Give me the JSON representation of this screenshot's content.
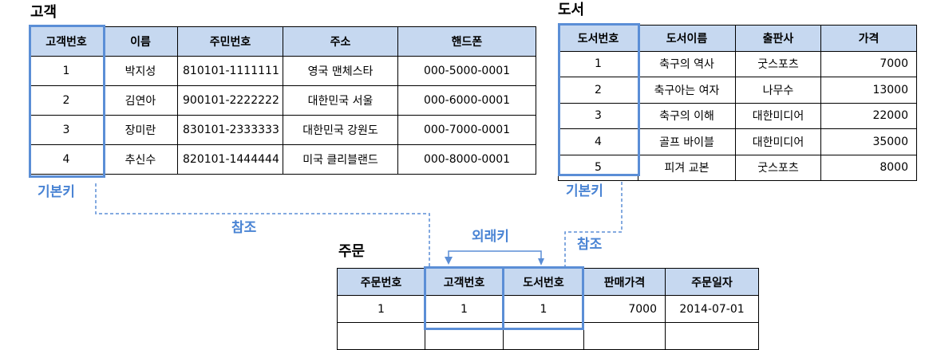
{
  "customer": {
    "title": "고객",
    "headers": [
      "고객번호",
      "이름",
      "주민번호",
      "주소",
      "핸드폰"
    ],
    "rows": [
      [
        "1",
        "박지성",
        "810101-1111111",
        "영국 맨체스타",
        "000-5000-0001"
      ],
      [
        "2",
        "김연아",
        "900101-2222222",
        "대한민국 서울",
        "000-6000-0001"
      ],
      [
        "3",
        "장미란",
        "830101-2333333",
        "대한민국 강원도",
        "000-7000-0001"
      ],
      [
        "4",
        "추신수",
        "820101-1444444",
        "미국 클리블랜드",
        "000-8000-0001"
      ]
    ],
    "pk_label": "기본키"
  },
  "book": {
    "title": "도서",
    "headers": [
      "도서번호",
      "도서이름",
      "출판사",
      "가격"
    ],
    "rows": [
      [
        "1",
        "축구의 역사",
        "굿스포츠",
        "7000"
      ],
      [
        "2",
        "축구아는 여자",
        "나무수",
        "13000"
      ],
      [
        "3",
        "축구의 이해",
        "대한미디어",
        "22000"
      ],
      [
        "4",
        "골프 바이블",
        "대한미디어",
        "35000"
      ],
      [
        "5",
        "피겨 교본",
        "굿스포츠",
        "8000"
      ]
    ],
    "pk_label": "기본키"
  },
  "order": {
    "title": "주문",
    "headers": [
      "주문번호",
      "고객번호",
      "도서번호",
      "판매가격",
      "주문일자"
    ],
    "rows": [
      [
        "1",
        "1",
        "1",
        "7000",
        "2014-07-01"
      ],
      [
        "",
        "",
        "",
        "",
        ""
      ]
    ]
  },
  "labels": {
    "ref_customer": "참조",
    "ref_book": "참조",
    "foreign_key": "외래키"
  },
  "colors": {
    "header_bg": "#c6d8f0",
    "highlight": "#5b8ed6",
    "label": "#4a84d4"
  }
}
